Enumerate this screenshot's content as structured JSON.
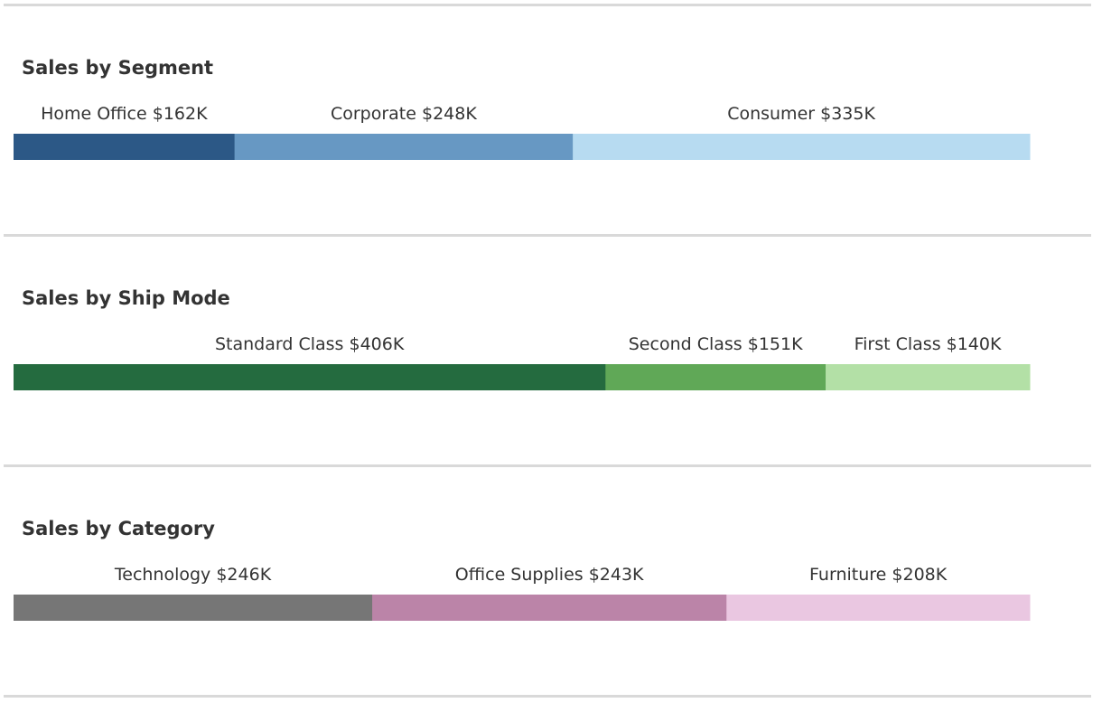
{
  "chart_data": [
    {
      "type": "bar",
      "orientation": "horizontal-stacked",
      "title": "Sales by Segment",
      "unit": "$K",
      "segments": [
        {
          "name": "Home Office",
          "value": 162,
          "label": "Home Office $162K",
          "color": "#2c5886"
        },
        {
          "name": "Corporate",
          "value": 248,
          "label": "Corporate $248K",
          "color": "#6798c3"
        },
        {
          "name": "Consumer",
          "value": 335,
          "label": "Consumer $335K",
          "color": "#b7dbf1"
        }
      ]
    },
    {
      "type": "bar",
      "orientation": "horizontal-stacked",
      "title": "Sales by Ship Mode",
      "unit": "$K",
      "segments": [
        {
          "name": "Standard Class",
          "value": 406,
          "label": "Standard Class $406K",
          "color": "#246b3f"
        },
        {
          "name": "Second Class",
          "value": 151,
          "label": "Second Class $151K",
          "color": "#60a857"
        },
        {
          "name": "First Class",
          "value": 140,
          "label": "First Class $140K",
          "color": "#b3e0a6"
        }
      ]
    },
    {
      "type": "bar",
      "orientation": "horizontal-stacked",
      "title": "Sales by Category",
      "unit": "$K",
      "segments": [
        {
          "name": "Technology",
          "value": 246,
          "label": "Technology $246K",
          "color": "#767676"
        },
        {
          "name": "Office Supplies",
          "value": 243,
          "label": "Office Supplies $243K",
          "color": "#bb84a8"
        },
        {
          "name": "Furniture",
          "value": 208,
          "label": "Furniture $208K",
          "color": "#eac7e1"
        }
      ]
    }
  ]
}
